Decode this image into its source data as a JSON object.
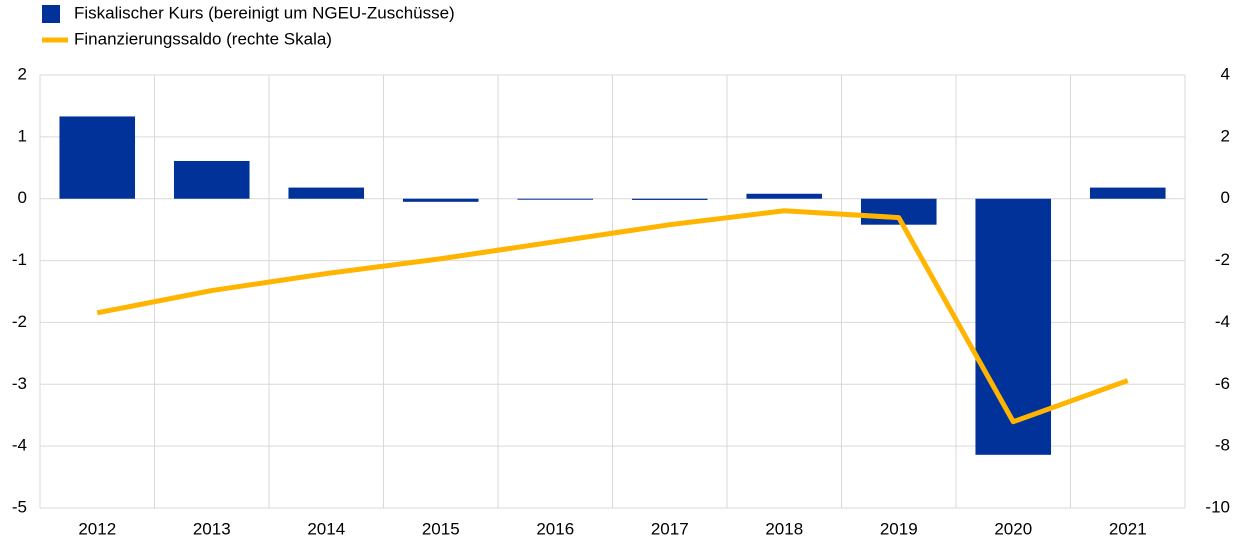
{
  "chart_data": {
    "type": "bar",
    "categories": [
      "2012",
      "2013",
      "2014",
      "2015",
      "2016",
      "2017",
      "2018",
      "2019",
      "2020",
      "2021"
    ],
    "series": [
      {
        "name": "Fiskalischer Kurs (bereinigt um NGEU-Zuschüsse)",
        "type": "bar",
        "color": "#003299",
        "values": [
          1.33,
          0.61,
          0.18,
          -0.05,
          0,
          -0.02,
          0.08,
          -0.42,
          -4.14,
          0.18
        ]
      },
      {
        "name": "Finanzierungssaldo (rechte Skala)",
        "type": "line",
        "axis": "y2",
        "color": "#ffb400",
        "values": [
          -3.69,
          -2.97,
          -2.42,
          -1.94,
          -1.39,
          -0.84,
          -0.39,
          -0.61,
          -7.21,
          -5.88
        ]
      }
    ],
    "ylim": [
      -5,
      2
    ],
    "yticks": [
      -5,
      -4,
      -3,
      -2,
      -1,
      0,
      1,
      2
    ],
    "y2lim": [
      -10,
      4
    ],
    "y2ticks": [
      -10,
      -8,
      -6,
      -4,
      -2,
      0,
      2,
      4
    ],
    "grid": true
  }
}
